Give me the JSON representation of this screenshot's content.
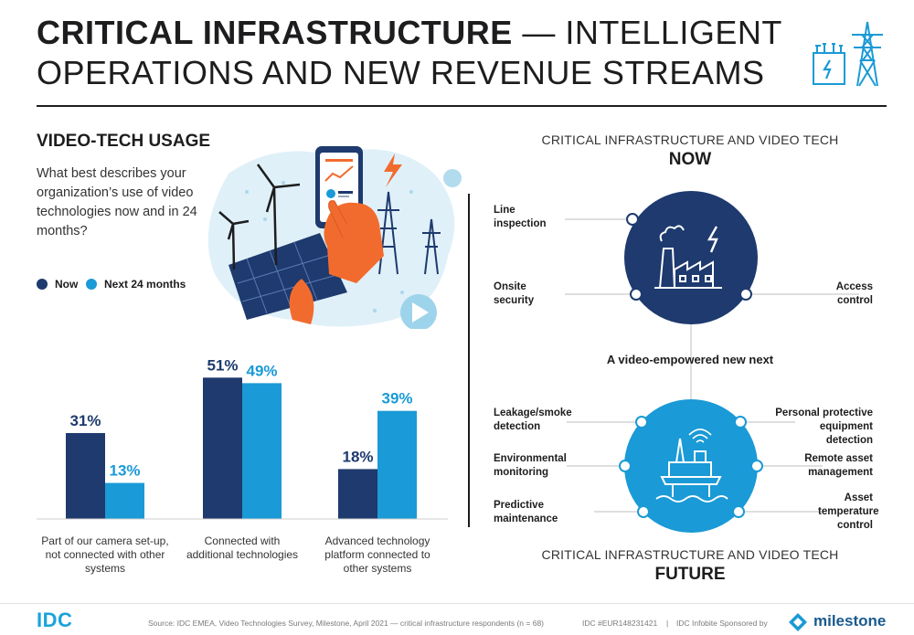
{
  "header": {
    "title_bold": "CRITICAL INFRASTRUCTURE",
    "title_light_1": " — INTELLIGENT",
    "title_light_2": "OPERATIONS AND NEW REVENUE STREAMS",
    "icon": "power-pylon-substation-icon"
  },
  "left_panel": {
    "section_title": "VIDEO-TECH USAGE",
    "question": "What best describes your organization’s use of video technologies now and in 24 months?",
    "illustration": "hand-holding-phone-with-wind-turbines-solar-panels-pylons-illustration",
    "play_icon": "play-icon"
  },
  "colors": {
    "now": "#1e3a6e",
    "next": "#1a9ad6",
    "accent": "#f26b2e"
  },
  "chart_data": {
    "type": "bar",
    "categories": [
      "Part of our camera set-up, not connected with other systems",
      "Connected with additional technologies",
      "Advanced technology platform connected to other systems"
    ],
    "series": [
      {
        "name": "Now",
        "values": [
          31,
          51,
          18
        ],
        "labels": [
          "31%",
          "51%",
          "18%"
        ],
        "color": "#1e3a6e"
      },
      {
        "name": "Next 24 months",
        "values": [
          13,
          49,
          39
        ],
        "labels": [
          "13%",
          "49%",
          "39%"
        ],
        "color": "#1a9ad6"
      }
    ],
    "title": "",
    "xlabel": "",
    "ylabel": "",
    "ylim": [
      0,
      60
    ],
    "grid": false,
    "legend": "top-left"
  },
  "right_panel": {
    "now_heading": "CRITICAL INFRASTRUCTURE AND VIDEO TECH",
    "now_big": "NOW",
    "now_features": {
      "line_inspection": "Line inspection",
      "onsite_security": "Onsite security",
      "access_control": "Access control"
    },
    "now_icon": "factory-with-lightning-icon",
    "bridge": "A video-empowered new next",
    "future_features": {
      "leakage": "Leakage/smoke detection",
      "environmental": "Environmental monitoring",
      "predictive": "Predictive maintenance",
      "ppe": "Personal protective equipment detection",
      "remote_asset": "Remote asset management",
      "asset_temp": "Asset temperature control"
    },
    "future_icon": "offshore-rig-with-wifi-icon",
    "future_heading": "CRITICAL INFRASTRUCTURE AND VIDEO TECH",
    "future_big": "FUTURE"
  },
  "footer": {
    "idc_logo": "IDC",
    "source": "Source: IDC EMEA, Video Technologies Survey, Milestone, April 2021 — critical infrastructure respondents (n = 68)",
    "doc_id": "IDC #EUR148231421",
    "separator": "|",
    "sponsor": "IDC Infobite Sponsored by",
    "milestone_logo": "milestone"
  }
}
